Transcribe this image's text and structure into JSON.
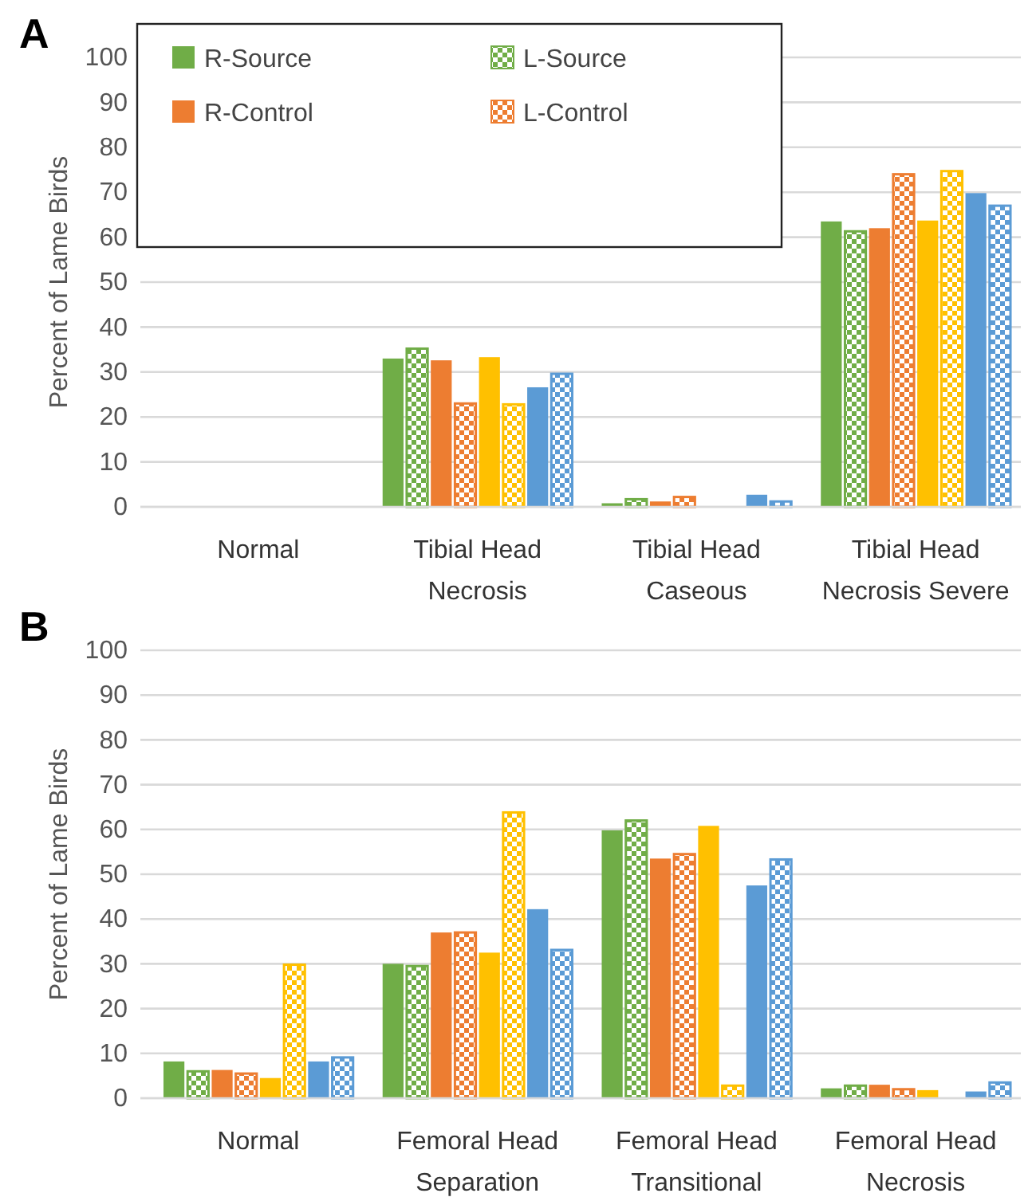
{
  "chart_data": [
    {
      "type": "bar",
      "title": "A",
      "ylabel": "Percent of Lame Birds",
      "categories": [
        "Normal",
        "Tibial Head Necrosis",
        "Tibial Head Caseous",
        "Tibial Head Necrosis Severe"
      ],
      "ylim": [
        0,
        100
      ],
      "yticks": [
        0,
        10,
        20,
        30,
        40,
        50,
        60,
        70,
        80,
        90,
        100
      ],
      "grid": "y",
      "legend": "top left",
      "series": [
        {
          "name": "R-Source",
          "color": "#70ad47",
          "values": [
            0,
            33,
            0.8,
            63.5
          ]
        },
        {
          "name": "L-Source",
          "color": "#70ad47",
          "values": [
            0,
            35.2,
            1.7,
            61.3
          ]
        },
        {
          "name": "R-Control",
          "color": "#ed7d31",
          "values": [
            0,
            32.6,
            1.2,
            62
          ]
        },
        {
          "name": "L-Control",
          "color": "#ed7d31",
          "values": [
            0,
            23,
            2.2,
            74
          ]
        },
        {
          "color": "#ffc000",
          "values": [
            0,
            33.3,
            0,
            63.7
          ]
        },
        {
          "color": "#ffc000",
          "values": [
            0,
            22.8,
            0,
            74.7
          ]
        },
        {
          "color": "#5b9bd5",
          "values": [
            0,
            26.6,
            2.7,
            69.8
          ]
        },
        {
          "color": "#5b9bd5",
          "values": [
            0,
            29.6,
            1.2,
            67
          ]
        }
      ]
    },
    {
      "type": "bar",
      "title": "B",
      "ylabel": "Percent of Lame Birds",
      "categories": [
        "Normal",
        "Femoral Head Separation",
        "Femoral Head Transitional",
        "Femoral Head Necrosis"
      ],
      "ylim": [
        0,
        100
      ],
      "yticks": [
        0,
        10,
        20,
        30,
        40,
        50,
        60,
        70,
        80,
        90,
        100
      ],
      "grid": "y",
      "series": [
        {
          "color": "#70ad47",
          "values": [
            8.2,
            30,
            59.8,
            2.2
          ]
        },
        {
          "color": "#70ad47",
          "values": [
            6,
            29.5,
            62,
            2.8
          ]
        },
        {
          "color": "#ed7d31",
          "values": [
            6.3,
            37,
            53.5,
            3
          ]
        },
        {
          "color": "#ed7d31",
          "values": [
            5.5,
            37,
            54.5,
            2
          ]
        },
        {
          "color": "#ffc000",
          "values": [
            4.5,
            32.5,
            60.8,
            1.8
          ]
        },
        {
          "color": "#ffc000",
          "values": [
            29.8,
            63.8,
            2.8,
            0
          ]
        },
        {
          "color": "#5b9bd5",
          "values": [
            8.2,
            42.2,
            47.5,
            1.5
          ]
        },
        {
          "color": "#5b9bd5",
          "values": [
            9.1,
            33.1,
            53.3,
            3.5
          ]
        }
      ]
    }
  ]
}
